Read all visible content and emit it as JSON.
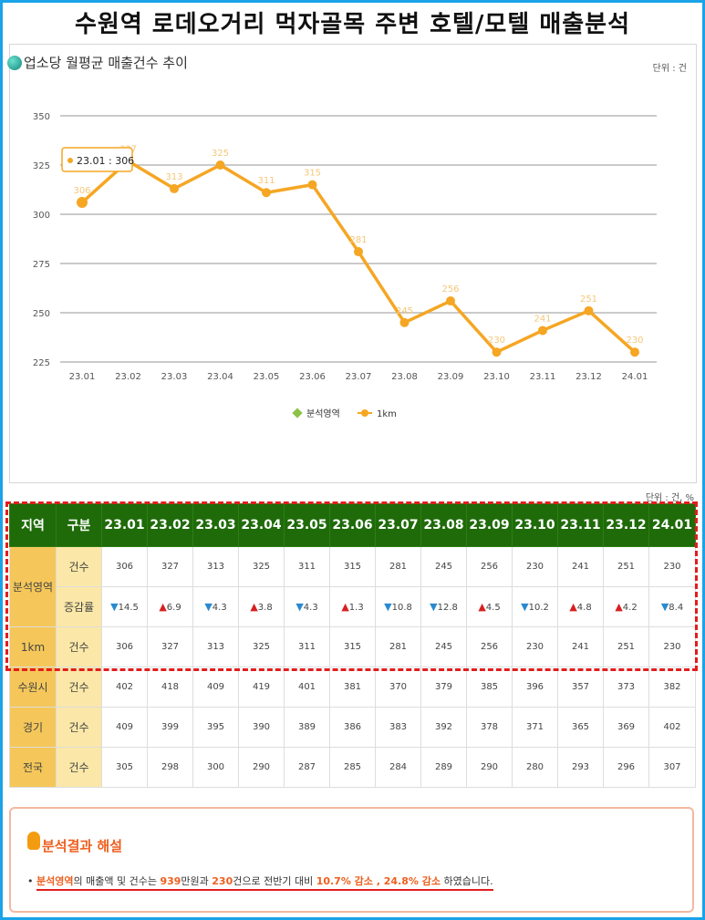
{
  "page_title": "수원역 로데오거리 먹자골목 주변 호텔/모텔 매출분석",
  "chart_title": "업소당 월평균 매출건수 추이",
  "chart_unit": "단위 : 건",
  "table_unit": "단위 : 건, %",
  "chart_data": {
    "type": "line",
    "title": "업소당 월평균 매출건수 추이",
    "categories": [
      "23.01",
      "23.02",
      "23.03",
      "23.04",
      "23.05",
      "23.06",
      "23.07",
      "23.08",
      "23.09",
      "23.10",
      "23.11",
      "23.12",
      "24.01"
    ],
    "yticks": [
      225,
      250,
      275,
      300,
      325,
      350
    ],
    "ylim": [
      225,
      350
    ],
    "grid": true,
    "legend_position": "bottom",
    "legend": [
      "분석영역",
      "1km"
    ],
    "series": [
      {
        "name": "1km",
        "color": "#f5a623",
        "values": [
          306,
          327,
          313,
          325,
          311,
          315,
          281,
          245,
          256,
          230,
          241,
          251,
          230
        ]
      }
    ],
    "annotation": "23.01 : 306"
  },
  "table": {
    "headers": [
      "지역",
      "구분",
      "23.01",
      "23.02",
      "23.03",
      "23.04",
      "23.05",
      "23.06",
      "23.07",
      "23.08",
      "23.09",
      "23.10",
      "23.11",
      "23.12",
      "24.01"
    ],
    "rows": [
      {
        "region": "분석영역",
        "kind": "건수",
        "values": [
          "306",
          "327",
          "313",
          "325",
          "311",
          "315",
          "281",
          "245",
          "256",
          "230",
          "241",
          "251",
          "230"
        ]
      },
      {
        "region": "",
        "kind": "증감률",
        "values": [
          "14.5",
          "6.9",
          "4.3",
          "3.8",
          "4.3",
          "1.3",
          "10.8",
          "12.8",
          "4.5",
          "10.2",
          "4.8",
          "4.2",
          "8.4"
        ],
        "dirs": [
          "down",
          "up",
          "down",
          "up",
          "down",
          "up",
          "down",
          "down",
          "up",
          "down",
          "up",
          "up",
          "down"
        ]
      },
      {
        "region": "1km",
        "kind": "건수",
        "values": [
          "306",
          "327",
          "313",
          "325",
          "311",
          "315",
          "281",
          "245",
          "256",
          "230",
          "241",
          "251",
          "230"
        ]
      },
      {
        "region": "수원시",
        "kind": "건수",
        "values": [
          "402",
          "418",
          "409",
          "419",
          "401",
          "381",
          "370",
          "379",
          "385",
          "396",
          "357",
          "373",
          "382"
        ]
      },
      {
        "region": "경기",
        "kind": "건수",
        "values": [
          "409",
          "399",
          "395",
          "390",
          "389",
          "386",
          "383",
          "392",
          "378",
          "371",
          "365",
          "369",
          "402"
        ]
      },
      {
        "region": "전국",
        "kind": "건수",
        "values": [
          "305",
          "298",
          "300",
          "290",
          "287",
          "285",
          "284",
          "289",
          "290",
          "280",
          "293",
          "296",
          "307"
        ]
      }
    ]
  },
  "result": {
    "title": "분석결과 해설",
    "bullet": "•",
    "parts": [
      "분석영역",
      "의 매출액 및 건수는 ",
      "939",
      "만원과 ",
      "230",
      "건으로 전반기 대비 ",
      "10.7% 감소 , 24.8% 감소",
      " 하였습니다."
    ]
  }
}
